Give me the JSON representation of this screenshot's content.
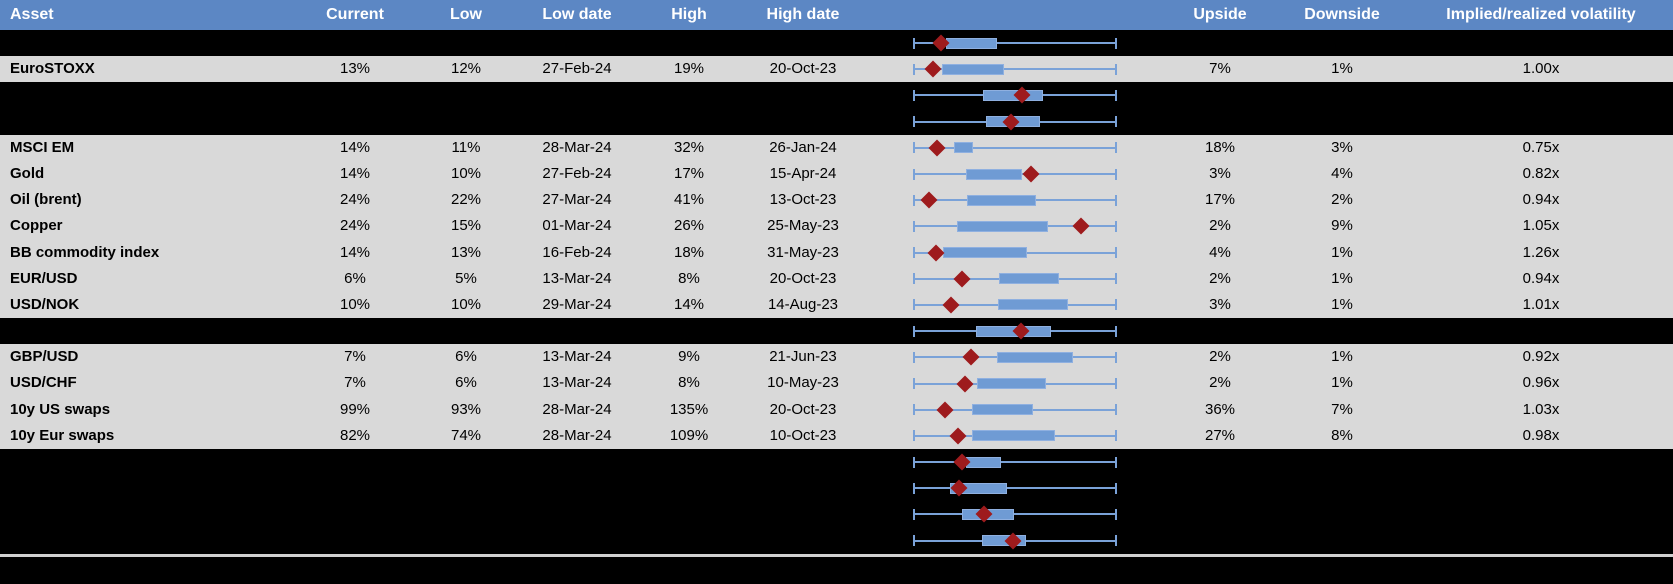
{
  "headers": {
    "asset": "Asset",
    "current": "Current",
    "low": "Low",
    "low_date": "Low date",
    "high": "High",
    "high_date": "High date",
    "upside": "Upside",
    "downside": "Downside",
    "iv": "Implied/realized volatility"
  },
  "colors": {
    "header_bg": "#5c87c4",
    "header_text": "#ffffff",
    "row_bg": "#d9d9d9",
    "hidden_row_bg": "#000000",
    "text": "#000000",
    "box_fill": "#6f9bd4",
    "box_border": "#8fb0e0",
    "whisker": "#7aa2d8",
    "marker": "#9e1b1d",
    "divider": "#d0d0d0"
  },
  "chart_data": {
    "type": "table",
    "row_chart_type": "horizontal box-whisker per row; red diamond = current level; box and marker given as fractions 0-1 of whisker span (whiskers always span full 0-1)",
    "columns": [
      "Asset",
      "Current",
      "Low",
      "Low date",
      "High",
      "High date",
      "Upside",
      "Downside",
      "Implied/realized volatility"
    ],
    "rows": [
      {
        "type": "hidden",
        "box": [
          0.162,
          0.412
        ],
        "marker": 0.137
      },
      {
        "type": "data",
        "asset": "EuroSTOXX",
        "current": "13%",
        "low": "12%",
        "low_date": "27-Feb-24",
        "high": "19%",
        "high_date": "20-Oct-23",
        "upside": "7%",
        "downside": "1%",
        "iv": "1.00x",
        "box": [
          0.142,
          0.446
        ],
        "marker": 0.098
      },
      {
        "type": "hidden",
        "box": [
          0.343,
          0.637
        ],
        "marker": 0.534
      },
      {
        "type": "hidden",
        "box": [
          0.358,
          0.623
        ],
        "marker": 0.48
      },
      {
        "type": "data",
        "asset": "MSCI EM",
        "current": "14%",
        "low": "11%",
        "low_date": "28-Mar-24",
        "high": "32%",
        "high_date": "26-Jan-24",
        "upside": "18%",
        "downside": "3%",
        "iv": "0.75x",
        "box": [
          0.201,
          0.294
        ],
        "marker": 0.118
      },
      {
        "type": "data",
        "asset": "Gold",
        "current": "14%",
        "low": "10%",
        "low_date": "27-Feb-24",
        "high": "17%",
        "high_date": "15-Apr-24",
        "upside": "3%",
        "downside": "4%",
        "iv": "0.82x",
        "box": [
          0.26,
          0.534
        ],
        "marker": 0.578
      },
      {
        "type": "data",
        "asset": "Oil (brent)",
        "current": "24%",
        "low": "22%",
        "low_date": "27-Mar-24",
        "high": "41%",
        "high_date": "13-Oct-23",
        "upside": "17%",
        "downside": "2%",
        "iv": "0.94x",
        "box": [
          0.265,
          0.603
        ],
        "marker": 0.078
      },
      {
        "type": "data",
        "asset": "Copper",
        "current": "24%",
        "low": "15%",
        "low_date": "01-Mar-24",
        "high": "26%",
        "high_date": "25-May-23",
        "upside": "2%",
        "downside": "9%",
        "iv": "1.05x",
        "box": [
          0.216,
          0.662
        ],
        "marker": 0.824
      },
      {
        "type": "data",
        "asset": "BB commodity index",
        "current": "14%",
        "low": "13%",
        "low_date": "16-Feb-24",
        "high": "18%",
        "high_date": "31-May-23",
        "upside": "4%",
        "downside": "1%",
        "iv": "1.26x",
        "box": [
          0.147,
          0.559
        ],
        "marker": 0.113
      },
      {
        "type": "data",
        "asset": "EUR/USD",
        "current": "6%",
        "low": "5%",
        "low_date": "13-Mar-24",
        "high": "8%",
        "high_date": "20-Oct-23",
        "upside": "2%",
        "downside": "1%",
        "iv": "0.94x",
        "box": [
          0.422,
          0.716
        ],
        "marker": 0.24
      },
      {
        "type": "data",
        "asset": "USD/NOK",
        "current": "10%",
        "low": "10%",
        "low_date": "29-Mar-24",
        "high": "14%",
        "high_date": "14-Aug-23",
        "upside": "3%",
        "downside": "1%",
        "iv": "1.01x",
        "box": [
          0.417,
          0.76
        ],
        "marker": 0.186
      },
      {
        "type": "hidden",
        "box": [
          0.309,
          0.677
        ],
        "marker": 0.529
      },
      {
        "type": "data",
        "asset": "GBP/USD",
        "current": "7%",
        "low": "6%",
        "low_date": "13-Mar-24",
        "high": "9%",
        "high_date": "21-Jun-23",
        "upside": "2%",
        "downside": "1%",
        "iv": "0.92x",
        "box": [
          0.412,
          0.784
        ],
        "marker": 0.284
      },
      {
        "type": "data",
        "asset": "USD/CHF",
        "current": "7%",
        "low": "6%",
        "low_date": "13-Mar-24",
        "high": "8%",
        "high_date": "10-May-23",
        "upside": "2%",
        "downside": "1%",
        "iv": "0.96x",
        "box": [
          0.314,
          0.652
        ],
        "marker": 0.255
      },
      {
        "type": "data",
        "asset": "10y US swaps",
        "current": "99%",
        "low": "93%",
        "low_date": "28-Mar-24",
        "high": "135%",
        "high_date": "20-Oct-23",
        "upside": "36%",
        "downside": "7%",
        "iv": "1.03x",
        "box": [
          0.289,
          0.588
        ],
        "marker": 0.157
      },
      {
        "type": "data",
        "asset": "10y Eur swaps",
        "current": "82%",
        "low": "74%",
        "low_date": "28-Mar-24",
        "high": "109%",
        "high_date": "10-Oct-23",
        "upside": "27%",
        "downside": "8%",
        "iv": "0.98x",
        "box": [
          0.289,
          0.696
        ],
        "marker": 0.221
      },
      {
        "type": "hidden",
        "box": [
          0.26,
          0.431
        ],
        "marker": 0.24
      },
      {
        "type": "hidden",
        "box": [
          0.181,
          0.461
        ],
        "marker": 0.225
      },
      {
        "type": "hidden",
        "box": [
          0.24,
          0.495
        ],
        "marker": 0.348
      },
      {
        "type": "hidden",
        "box": [
          0.338,
          0.554
        ],
        "marker": 0.49
      }
    ]
  }
}
